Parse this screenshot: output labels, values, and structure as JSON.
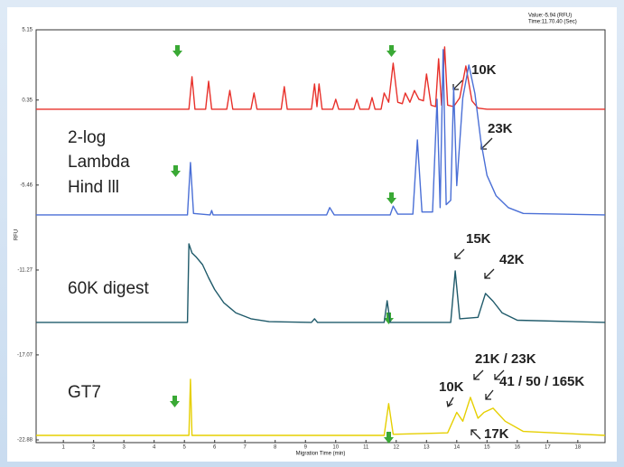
{
  "chart_data": {
    "type": "line",
    "xlabel": "Migration Time (min)",
    "ylabel": "RFU",
    "readout": [
      "Value:-5.94 (RFU)",
      "Time:11.70.40 (Sec)"
    ],
    "xlim": [
      0.1,
      18.9
    ],
    "ylim": [
      -22.88,
      5.15
    ],
    "xticks": [
      1,
      2,
      3,
      4,
      5,
      6,
      7,
      8,
      9,
      10,
      11,
      12,
      13,
      14,
      15,
      16,
      17,
      18
    ],
    "yticks": [
      5.15,
      0.35,
      -5.46,
      -11.27,
      -17.07,
      -22.88
    ],
    "annotations": [
      "10K",
      "2-log",
      "Lambda",
      "Hind lll",
      "23K",
      "15K",
      "42K",
      "60K digest",
      "21K / 23K",
      "10K",
      "41 / 50 / 165K",
      "GT7",
      "17K"
    ],
    "series": [
      {
        "color": "#e8302a",
        "x": [
          0.1,
          5.15,
          5.25,
          5.35,
          5.7,
          5.8,
          5.9,
          6.4,
          6.5,
          6.6,
          7.2,
          7.3,
          7.4,
          8.2,
          8.3,
          8.4,
          9.2,
          9.3,
          9.38,
          9.45,
          9.55,
          9.9,
          10.0,
          10.1,
          10.6,
          10.7,
          10.8,
          11.1,
          11.2,
          11.3,
          11.5,
          11.6,
          11.75,
          11.9,
          12.05,
          12.2,
          12.3,
          12.45,
          12.6,
          12.75,
          12.9,
          13.0,
          13.15,
          13.3,
          13.4,
          13.5,
          13.6,
          13.7,
          13.9,
          14.1,
          14.3,
          14.5,
          14.7,
          15.0,
          18.9
        ],
        "values": [
          -0.28,
          -0.28,
          1.94,
          -0.28,
          -0.28,
          1.63,
          -0.28,
          -0.28,
          1.01,
          -0.28,
          -0.28,
          0.83,
          -0.28,
          -0.28,
          1.26,
          -0.28,
          -0.28,
          1.45,
          -0.1,
          1.45,
          -0.28,
          -0.28,
          0.4,
          -0.28,
          -0.28,
          0.4,
          -0.28,
          -0.28,
          0.52,
          -0.28,
          -0.28,
          0.83,
          0.2,
          2.87,
          0.2,
          0.1,
          0.83,
          0.2,
          1.0,
          0.4,
          0.3,
          2.13,
          0.0,
          -0.1,
          3.17,
          0.0,
          3.98,
          0.0,
          -0.1,
          0.5,
          2.68,
          0.3,
          -0.2,
          -0.28,
          -0.28
        ]
      },
      {
        "color": "#4a6fd6",
        "x": [
          0.1,
          5.1,
          5.2,
          5.3,
          5.85,
          5.9,
          5.95,
          9.7,
          9.8,
          9.95,
          11.8,
          11.9,
          12.05,
          12.55,
          12.7,
          12.85,
          13.2,
          13.35,
          13.45,
          13.55,
          13.65,
          13.8,
          13.9,
          14.0,
          14.2,
          14.4,
          14.6,
          14.8,
          15.0,
          15.3,
          15.7,
          16.2,
          18.9
        ],
        "values": [
          -7.5,
          -7.5,
          -3.92,
          -7.4,
          -7.5,
          -7.2,
          -7.5,
          -7.5,
          -7.0,
          -7.5,
          -7.5,
          -6.9,
          -7.45,
          -7.45,
          -2.38,
          -7.3,
          -7.3,
          0.4,
          -7.0,
          3.79,
          -6.8,
          -6.5,
          1.2,
          -5.5,
          0.5,
          2.74,
          0.8,
          -2.5,
          -4.8,
          -6.2,
          -7.0,
          -7.4,
          -7.5
        ]
      },
      {
        "color": "#1f5a6a",
        "x": [
          0.1,
          5.1,
          5.15,
          5.25,
          5.4,
          5.6,
          5.8,
          6.0,
          6.3,
          6.7,
          7.2,
          7.8,
          9.2,
          9.3,
          9.4,
          11.6,
          11.7,
          11.8,
          13.8,
          13.95,
          14.1,
          14.7,
          14.95,
          15.2,
          15.5,
          16.0,
          18.9
        ],
        "values": [
          -14.85,
          -14.85,
          -9.48,
          -10.1,
          -10.4,
          -10.9,
          -11.8,
          -12.6,
          -13.5,
          -14.2,
          -14.6,
          -14.8,
          -14.85,
          -14.6,
          -14.85,
          -14.85,
          -13.37,
          -14.85,
          -14.85,
          -11.33,
          -14.6,
          -14.5,
          -12.87,
          -13.4,
          -14.2,
          -14.7,
          -14.85
        ]
      },
      {
        "color": "#e6cf00",
        "x": [
          0.1,
          5.15,
          5.2,
          5.25,
          11.6,
          11.75,
          11.9,
          13.7,
          14.0,
          14.2,
          14.45,
          14.7,
          14.9,
          15.2,
          15.6,
          16.2,
          18.9
        ],
        "values": [
          -22.57,
          -22.57,
          -18.74,
          -22.57,
          -22.57,
          -20.4,
          -22.5,
          -22.4,
          -21.0,
          -21.6,
          -19.97,
          -21.4,
          -21.0,
          -20.71,
          -21.6,
          -22.3,
          -22.57
        ]
      }
    ]
  }
}
